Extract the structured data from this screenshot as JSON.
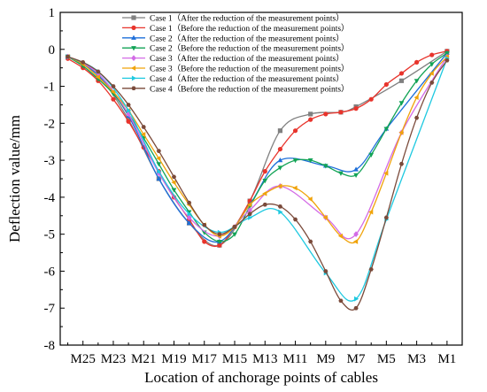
{
  "chart_data": {
    "type": "line",
    "xlabel": "Location of anchorage points of cables",
    "ylabel": "Deflection value/mm",
    "ylim": [
      -8,
      1
    ],
    "yticks": [
      1,
      0,
      -1,
      -2,
      -3,
      -4,
      -5,
      -6,
      -7,
      -8
    ],
    "xlim": [
      26.5,
      0
    ],
    "xticks": [
      {
        "pos": 25,
        "label": "M25"
      },
      {
        "pos": 23,
        "label": "M23"
      },
      {
        "pos": 21,
        "label": "M21"
      },
      {
        "pos": 19,
        "label": "M19"
      },
      {
        "pos": 17,
        "label": "M17"
      },
      {
        "pos": 15,
        "label": "M15"
      },
      {
        "pos": 13,
        "label": "M13"
      },
      {
        "pos": 11,
        "label": "M11"
      },
      {
        "pos": 9,
        "label": "M9"
      },
      {
        "pos": 7,
        "label": "M7"
      },
      {
        "pos": 5,
        "label": "M5"
      },
      {
        "pos": 3,
        "label": "M3"
      },
      {
        "pos": 1,
        "label": "M1"
      }
    ],
    "legend_position": "top",
    "series": [
      {
        "name": "Case 1（After the reduction of the measurement points）",
        "color": "#808080",
        "marker": "square",
        "x": [
          26,
          24,
          22,
          20,
          18,
          16,
          14,
          12,
          10,
          8,
          7,
          4,
          1
        ],
        "y": [
          -0.2,
          -0.7,
          -1.9,
          -3.5,
          -4.7,
          -5.3,
          -4.1,
          -2.2,
          -1.75,
          -1.7,
          -1.55,
          -0.85,
          -0.05
        ]
      },
      {
        "name": "Case 1（Before  the reduction of the measurement points）",
        "color": "#e8342c",
        "marker": "circle",
        "x": [
          26,
          25,
          24,
          23,
          22,
          21,
          20,
          19,
          18,
          17,
          16,
          15,
          14,
          13,
          12,
          11,
          10,
          9,
          8,
          7,
          6,
          5,
          4,
          3,
          2,
          1
        ],
        "y": [
          -0.25,
          -0.5,
          -0.85,
          -1.35,
          -1.95,
          -2.65,
          -3.3,
          -4.0,
          -4.6,
          -5.2,
          -5.3,
          -4.8,
          -4.1,
          -3.3,
          -2.7,
          -2.2,
          -1.9,
          -1.75,
          -1.7,
          -1.6,
          -1.35,
          -0.95,
          -0.65,
          -0.35,
          -0.15,
          -0.05
        ]
      },
      {
        "name": "Case 2（After  the reduction of the measurement points）",
        "color": "#1e6fd9",
        "marker": "triangle-up",
        "x": [
          26,
          24,
          22,
          20,
          18,
          16,
          14,
          12,
          9,
          7,
          5,
          1
        ],
        "y": [
          -0.2,
          -0.7,
          -1.8,
          -3.5,
          -4.7,
          -5.2,
          -4.2,
          -3.0,
          -3.15,
          -3.25,
          -2.15,
          -0.1
        ]
      },
      {
        "name": "Case 2（Before  the reduction of the measurement points）",
        "color": "#12a356",
        "marker": "triangle-down",
        "x": [
          26,
          25,
          24,
          23,
          22,
          21,
          20,
          19,
          18,
          17,
          16,
          15,
          14,
          13,
          12,
          11,
          10,
          9,
          8,
          7,
          6,
          5,
          4,
          3,
          2,
          1
        ],
        "y": [
          -0.2,
          -0.45,
          -0.8,
          -1.2,
          -1.75,
          -2.4,
          -3.1,
          -3.8,
          -4.4,
          -4.95,
          -5.2,
          -5.0,
          -4.25,
          -3.55,
          -3.2,
          -3.0,
          -3.0,
          -3.15,
          -3.35,
          -3.4,
          -2.85,
          -2.15,
          -1.45,
          -0.85,
          -0.4,
          -0.1
        ]
      },
      {
        "name": "Case 3（After  the reduction of the measurement points）",
        "color": "#d36be6",
        "marker": "diamond",
        "x": [
          26,
          24,
          22,
          20,
          18,
          16,
          14,
          12,
          9,
          7,
          4,
          1
        ],
        "y": [
          -0.2,
          -0.65,
          -1.75,
          -3.35,
          -4.55,
          -5.05,
          -4.35,
          -3.7,
          -4.55,
          -5.0,
          -2.25,
          -0.2
        ]
      },
      {
        "name": "Case 3（Before  the reduction of the measurement points）",
        "color": "#f0a30a",
        "marker": "triangle-left",
        "x": [
          26,
          25,
          24,
          23,
          22,
          21,
          20,
          19,
          18,
          17,
          16,
          15,
          14,
          13,
          12,
          11,
          10,
          9,
          8,
          7,
          6,
          5,
          4,
          3,
          2,
          1
        ],
        "y": [
          -0.2,
          -0.4,
          -0.75,
          -1.15,
          -1.65,
          -2.3,
          -2.95,
          -3.6,
          -4.2,
          -4.75,
          -5.05,
          -4.8,
          -4.2,
          -3.9,
          -3.7,
          -3.75,
          -4.05,
          -4.55,
          -5.05,
          -5.2,
          -4.4,
          -3.35,
          -2.25,
          -1.3,
          -0.65,
          -0.2
        ]
      },
      {
        "name": "Case 4（After  the reduction of the measurement points）",
        "color": "#1ec9e0",
        "marker": "triangle-right",
        "x": [
          26,
          24,
          22,
          20,
          18,
          16,
          14,
          12,
          9,
          7,
          5,
          1
        ],
        "y": [
          -0.2,
          -0.6,
          -1.65,
          -3.3,
          -4.45,
          -4.95,
          -4.55,
          -4.4,
          -6.05,
          -6.75,
          -4.6,
          -0.25
        ]
      },
      {
        "name": "Case 4（Before  the reduction of the measurement points）",
        "color": "#7a4a3a",
        "marker": "hexagon",
        "x": [
          26,
          25,
          24,
          23,
          22,
          21,
          20,
          19,
          18,
          17,
          16,
          15,
          14,
          13,
          12,
          11,
          10,
          9,
          8,
          7,
          6,
          5,
          4,
          3,
          2,
          1
        ],
        "y": [
          -0.2,
          -0.35,
          -0.6,
          -1.0,
          -1.5,
          -2.1,
          -2.75,
          -3.45,
          -4.15,
          -4.75,
          -5.0,
          -4.8,
          -4.45,
          -4.2,
          -4.25,
          -4.6,
          -5.2,
          -6.0,
          -6.8,
          -7.0,
          -5.95,
          -4.55,
          -3.1,
          -1.85,
          -0.9,
          -0.3
        ]
      }
    ]
  }
}
